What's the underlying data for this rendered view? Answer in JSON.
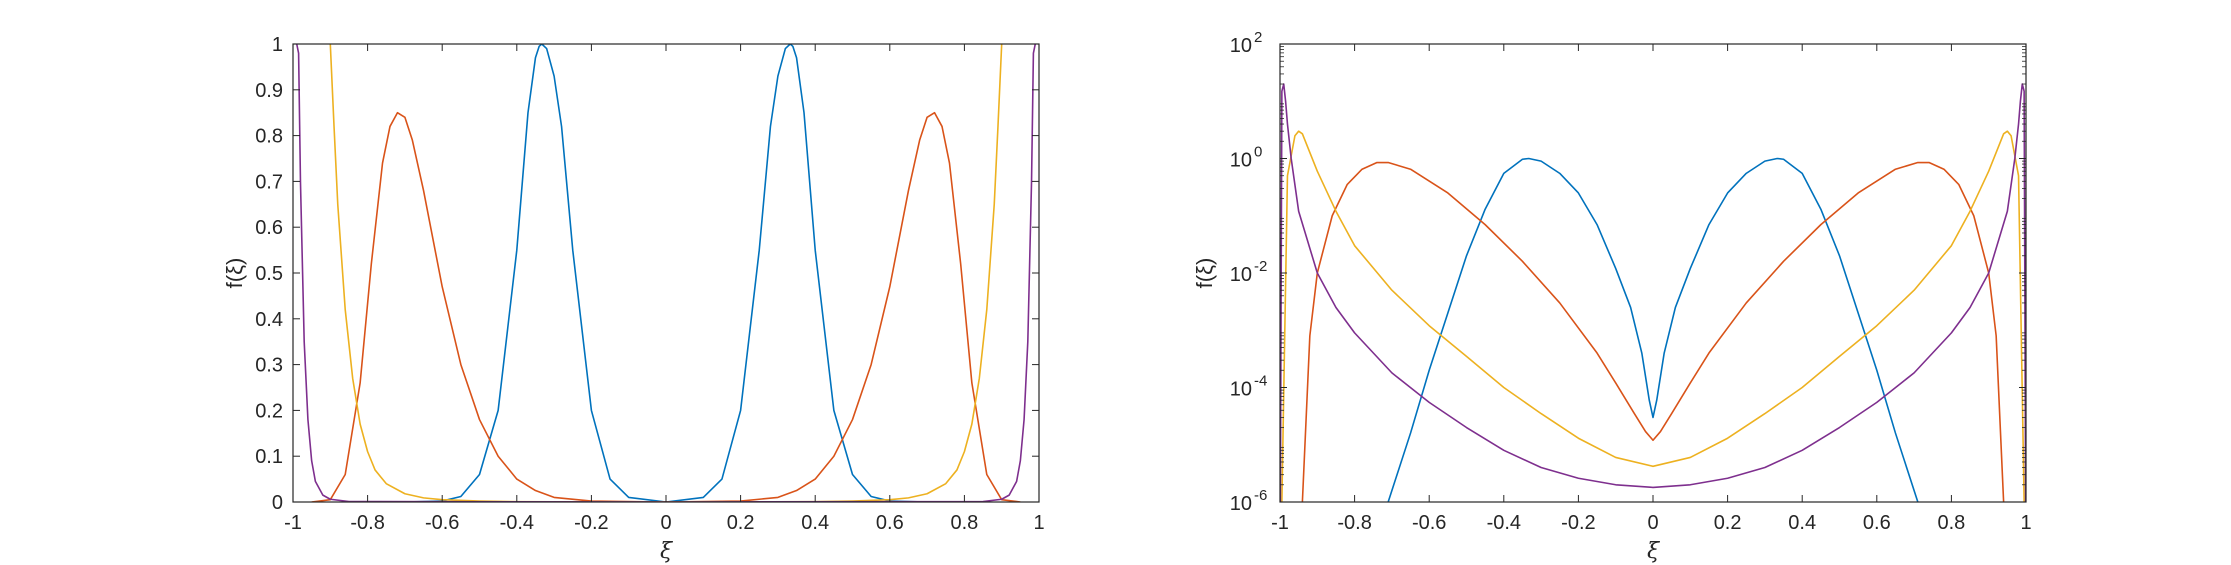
{
  "chart_data": [
    {
      "type": "line",
      "xlabel": "ξ",
      "ylabel": "f(ξ)",
      "xlim": [
        -1,
        1
      ],
      "ylim": [
        0,
        1
      ],
      "yscale": "linear",
      "grid": false,
      "xticks": [
        "-1",
        "-0.8",
        "-0.6",
        "-0.4",
        "-0.2",
        "0",
        "0.2",
        "0.4",
        "0.6",
        "0.8",
        "1"
      ],
      "yticks": [
        "0",
        "0.1",
        "0.2",
        "0.3",
        "0.4",
        "0.5",
        "0.6",
        "0.7",
        "0.8",
        "0.9",
        "1"
      ],
      "series": [
        {
          "color": "#0072BD",
          "x": [
            -0.7,
            -0.6,
            -0.55,
            -0.5,
            -0.45,
            -0.4,
            -0.37,
            -0.35,
            -0.34,
            -0.333,
            -0.32,
            -0.3,
            -0.28,
            -0.25,
            -0.2,
            -0.15,
            -0.1,
            0,
            0.1,
            0.15,
            0.2,
            0.25,
            0.28,
            0.3,
            0.32,
            0.333,
            0.34,
            0.35,
            0.37,
            0.4,
            0.45,
            0.5,
            0.55,
            0.6,
            0.7
          ],
          "y": [
            0.0,
            0.002,
            0.012,
            0.06,
            0.2,
            0.55,
            0.85,
            0.97,
            0.995,
            1.0,
            0.99,
            0.93,
            0.82,
            0.55,
            0.2,
            0.05,
            0.01,
            0.0,
            0.01,
            0.05,
            0.2,
            0.55,
            0.82,
            0.93,
            0.99,
            1.0,
            0.995,
            0.97,
            0.85,
            0.55,
            0.2,
            0.06,
            0.012,
            0.002,
            0.0
          ]
        },
        {
          "color": "#D95319",
          "x": [
            -0.95,
            -0.9,
            -0.86,
            -0.82,
            -0.79,
            -0.76,
            -0.74,
            -0.72,
            -0.7,
            -0.68,
            -0.65,
            -0.6,
            -0.55,
            -0.5,
            -0.45,
            -0.4,
            -0.35,
            -0.3,
            -0.2,
            0,
            0.2,
            0.3,
            0.35,
            0.4,
            0.45,
            0.5,
            0.55,
            0.6,
            0.65,
            0.68,
            0.7,
            0.72,
            0.74,
            0.76,
            0.79,
            0.82,
            0.86,
            0.9,
            0.95
          ],
          "y": [
            0.0,
            0.005,
            0.06,
            0.26,
            0.52,
            0.74,
            0.82,
            0.85,
            0.84,
            0.79,
            0.68,
            0.47,
            0.3,
            0.18,
            0.1,
            0.05,
            0.025,
            0.01,
            0.002,
            0.0,
            0.002,
            0.01,
            0.025,
            0.05,
            0.1,
            0.18,
            0.3,
            0.47,
            0.68,
            0.79,
            0.84,
            0.85,
            0.82,
            0.74,
            0.52,
            0.26,
            0.06,
            0.005,
            0.0
          ]
        },
        {
          "color": "#EDB120",
          "x": [
            -0.9,
            -0.89,
            -0.88,
            -0.86,
            -0.84,
            -0.82,
            -0.8,
            -0.78,
            -0.75,
            -0.7,
            -0.65,
            -0.6,
            -0.5,
            -0.4,
            -0.3,
            0,
            0.3,
            0.4,
            0.5,
            0.6,
            0.65,
            0.7,
            0.75,
            0.78,
            0.8,
            0.82,
            0.84,
            0.86,
            0.88,
            0.89,
            0.9
          ],
          "y": [
            1.0,
            0.82,
            0.65,
            0.42,
            0.27,
            0.17,
            0.11,
            0.07,
            0.04,
            0.018,
            0.009,
            0.005,
            0.002,
            0.0008,
            0.0003,
            0.0,
            0.0003,
            0.0008,
            0.002,
            0.005,
            0.009,
            0.018,
            0.04,
            0.07,
            0.11,
            0.17,
            0.27,
            0.42,
            0.65,
            0.82,
            1.0
          ]
        },
        {
          "color": "#7E2F8E",
          "x": [
            -0.99,
            -0.985,
            -0.98,
            -0.97,
            -0.96,
            -0.95,
            -0.94,
            -0.92,
            -0.9,
            -0.85,
            0,
            0.85,
            0.9,
            0.92,
            0.94,
            0.95,
            0.96,
            0.97,
            0.98,
            0.985,
            0.99
          ],
          "y": [
            1.0,
            0.98,
            0.7,
            0.35,
            0.18,
            0.09,
            0.045,
            0.015,
            0.006,
            0.001,
            0.0,
            0.001,
            0.006,
            0.015,
            0.045,
            0.09,
            0.18,
            0.35,
            0.7,
            0.98,
            1.0
          ]
        }
      ]
    },
    {
      "type": "line",
      "xlabel": "ξ",
      "ylabel": "f(ξ)",
      "xlim": [
        -1,
        1
      ],
      "ylim": [
        1e-06,
        100
      ],
      "yscale": "log",
      "grid": false,
      "xticks": [
        "-1",
        "-0.8",
        "-0.6",
        "-0.4",
        "-0.2",
        "0",
        "0.2",
        "0.4",
        "0.6",
        "0.8",
        "1"
      ],
      "yticks": [
        {
          "base": "10",
          "exp": "-6"
        },
        {
          "base": "10",
          "exp": "-4"
        },
        {
          "base": "10",
          "exp": "-2"
        },
        {
          "base": "10",
          "exp": "0"
        },
        {
          "base": "10",
          "exp": "2"
        }
      ],
      "series": [
        {
          "color": "#0072BD",
          "x": [
            -0.71,
            -0.65,
            -0.6,
            -0.55,
            -0.5,
            -0.45,
            -0.4,
            -0.35,
            -0.333,
            -0.3,
            -0.25,
            -0.2,
            -0.15,
            -0.1,
            -0.06,
            -0.03,
            -0.01,
            0,
            0.01,
            0.03,
            0.06,
            0.1,
            0.15,
            0.2,
            0.25,
            0.3,
            0.333,
            0.35,
            0.4,
            0.45,
            0.5,
            0.55,
            0.6,
            0.65,
            0.71
          ],
          "y": [
            1e-06,
            1.6e-05,
            0.0002,
            0.002,
            0.02,
            0.13,
            0.55,
            0.97,
            1.0,
            0.9,
            0.55,
            0.25,
            0.07,
            0.012,
            0.0025,
            0.0004,
            6e-05,
            3e-05,
            6e-05,
            0.0004,
            0.0025,
            0.012,
            0.07,
            0.25,
            0.55,
            0.9,
            1.0,
            0.97,
            0.55,
            0.13,
            0.02,
            0.002,
            0.0002,
            1.6e-05,
            1e-06
          ]
        },
        {
          "color": "#D95319",
          "x": [
            -0.94,
            -0.92,
            -0.9,
            -0.86,
            -0.82,
            -0.78,
            -0.74,
            -0.71,
            -0.65,
            -0.55,
            -0.45,
            -0.35,
            -0.25,
            -0.15,
            -0.1,
            -0.05,
            -0.02,
            0,
            0.02,
            0.05,
            0.1,
            0.15,
            0.25,
            0.35,
            0.45,
            0.55,
            0.65,
            0.71,
            0.74,
            0.78,
            0.82,
            0.86,
            0.9,
            0.92,
            0.94
          ],
          "y": [
            1e-06,
            0.0008,
            0.01,
            0.1,
            0.35,
            0.65,
            0.85,
            0.85,
            0.65,
            0.25,
            0.07,
            0.016,
            0.003,
            0.0004,
            0.00012,
            3.5e-05,
            1.7e-05,
            1.2e-05,
            1.7e-05,
            3.5e-05,
            0.00012,
            0.0004,
            0.003,
            0.016,
            0.07,
            0.25,
            0.65,
            0.85,
            0.85,
            0.65,
            0.35,
            0.1,
            0.01,
            0.0008,
            1e-06
          ]
        },
        {
          "color": "#EDB120",
          "x": [
            -0.995,
            -0.98,
            -0.96,
            -0.95,
            -0.94,
            -0.9,
            -0.85,
            -0.8,
            -0.7,
            -0.6,
            -0.5,
            -0.4,
            -0.3,
            -0.2,
            -0.1,
            0,
            0.1,
            0.2,
            0.3,
            0.4,
            0.5,
            0.6,
            0.7,
            0.8,
            0.85,
            0.9,
            0.94,
            0.95,
            0.96,
            0.98,
            0.995
          ],
          "y": [
            1e-06,
            0.5,
            2.5,
            3.0,
            2.7,
            0.6,
            0.12,
            0.03,
            0.005,
            0.0012,
            0.00035,
            0.0001,
            3.5e-05,
            1.3e-05,
            6e-06,
            4.2e-06,
            6e-06,
            1.3e-05,
            3.5e-05,
            0.0001,
            0.00035,
            0.0012,
            0.005,
            0.03,
            0.12,
            0.6,
            2.7,
            3.0,
            2.5,
            0.5,
            1e-06
          ]
        },
        {
          "color": "#7E2F8E",
          "x": [
            -0.999,
            -0.995,
            -0.99,
            -0.985,
            -0.98,
            -0.97,
            -0.95,
            -0.9,
            -0.85,
            -0.8,
            -0.7,
            -0.6,
            -0.5,
            -0.4,
            -0.3,
            -0.2,
            -0.1,
            0,
            0.1,
            0.2,
            0.3,
            0.4,
            0.5,
            0.6,
            0.7,
            0.8,
            0.85,
            0.9,
            0.95,
            0.97,
            0.98,
            0.985,
            0.99,
            0.995,
            0.999
          ],
          "y": [
            1e-06,
            15,
            20,
            10,
            4,
            1.0,
            0.12,
            0.01,
            0.0025,
            0.0009,
            0.00018,
            5.5e-05,
            2e-05,
            8e-06,
            4e-06,
            2.6e-06,
            2e-06,
            1.8e-06,
            2e-06,
            2.6e-06,
            4e-06,
            8e-06,
            2e-05,
            5.5e-05,
            0.00018,
            0.0009,
            0.0025,
            0.01,
            0.12,
            1.0,
            4,
            10,
            20,
            15,
            1e-06
          ]
        }
      ]
    }
  ]
}
